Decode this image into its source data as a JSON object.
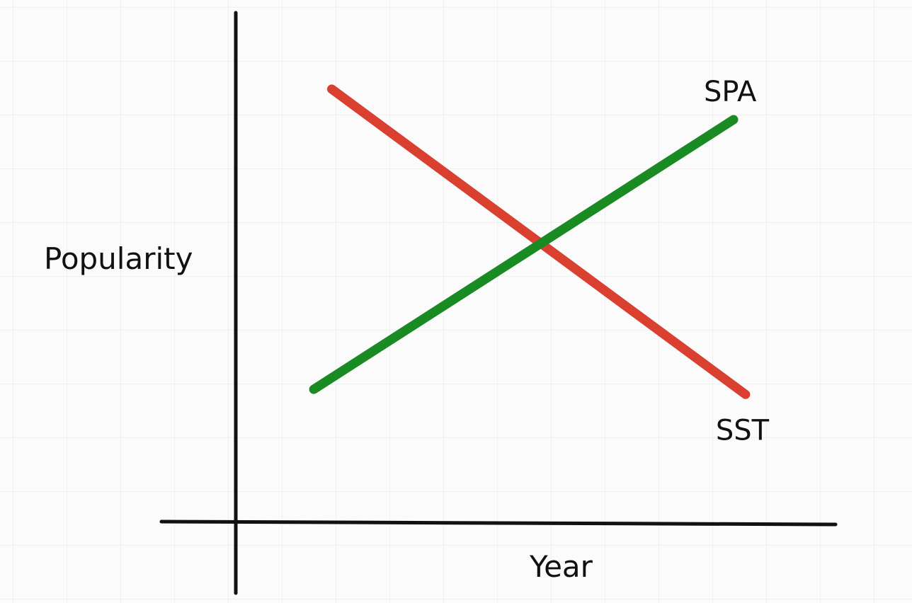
{
  "chart_data": {
    "type": "line",
    "xlabel": "Year",
    "ylabel": "Popularity",
    "xlim": [
      0,
      10
    ],
    "ylim": [
      0,
      10
    ],
    "grid": true,
    "axis_color": "#111111",
    "series": [
      {
        "name": "SST",
        "color": "#d94030",
        "x": [
          1.6,
          8.5
        ],
        "y": [
          8.5,
          2.5
        ]
      },
      {
        "name": "SPA",
        "color": "#1a8a22",
        "x": [
          1.3,
          8.3
        ],
        "y": [
          2.6,
          7.9
        ]
      }
    ]
  }
}
